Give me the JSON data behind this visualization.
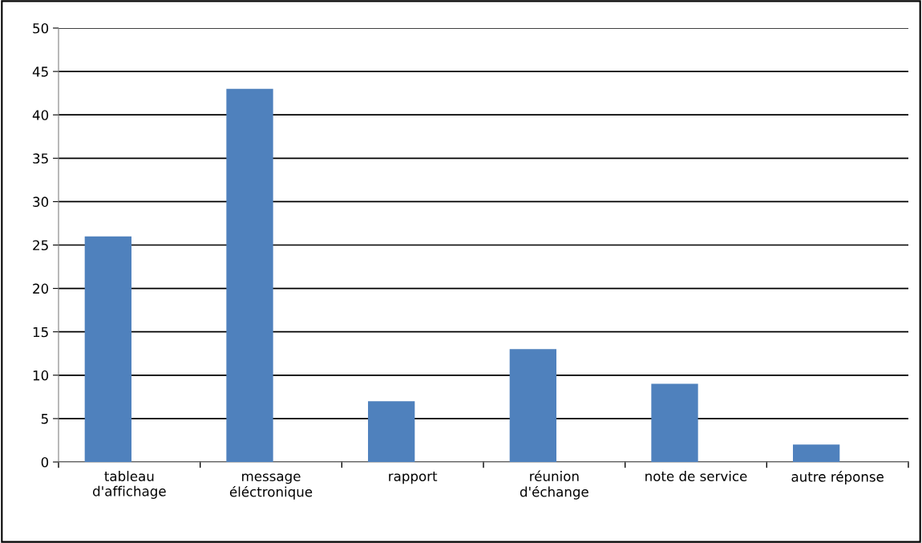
{
  "chart_data": {
    "type": "bar",
    "categories": [
      "tableau\nd'affichage",
      "message\néléctronique",
      "rapport",
      "réunion\nd'échange",
      "note de service",
      "autre réponse"
    ],
    "values": [
      26,
      43,
      7,
      13,
      9,
      2
    ],
    "color": "#4f81bd",
    "ylim": [
      0,
      50
    ],
    "yticks": [
      0,
      5,
      10,
      15,
      20,
      25,
      30,
      35,
      40,
      45,
      50
    ],
    "grid": "y",
    "legend": false
  }
}
